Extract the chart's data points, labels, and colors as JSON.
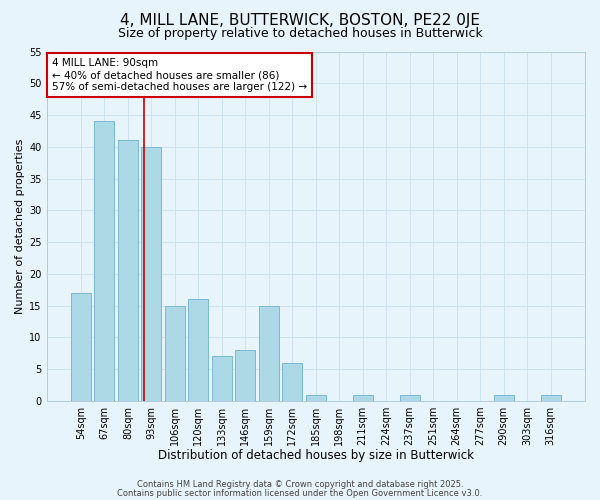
{
  "title": "4, MILL LANE, BUTTERWICK, BOSTON, PE22 0JE",
  "subtitle": "Size of property relative to detached houses in Butterwick",
  "xlabel": "Distribution of detached houses by size in Butterwick",
  "ylabel": "Number of detached properties",
  "bar_labels": [
    "54sqm",
    "67sqm",
    "80sqm",
    "93sqm",
    "106sqm",
    "120sqm",
    "133sqm",
    "146sqm",
    "159sqm",
    "172sqm",
    "185sqm",
    "198sqm",
    "211sqm",
    "224sqm",
    "237sqm",
    "251sqm",
    "264sqm",
    "277sqm",
    "290sqm",
    "303sqm",
    "316sqm"
  ],
  "bar_values": [
    17,
    44,
    41,
    40,
    15,
    16,
    7,
    8,
    15,
    6,
    1,
    0,
    1,
    0,
    1,
    0,
    0,
    0,
    1,
    0,
    1
  ],
  "bar_color": "#add8e6",
  "bar_edge_color": "#7ab8d4",
  "highlight_line_color": "#cc0000",
  "annotation_line1": "4 MILL LANE: 90sqm",
  "annotation_line2": "← 40% of detached houses are smaller (86)",
  "annotation_line3": "57% of semi-detached houses are larger (122) →",
  "annotation_box_color": "#ffffff",
  "annotation_box_edge": "#cc0000",
  "ylim": [
    0,
    55
  ],
  "yticks": [
    0,
    5,
    10,
    15,
    20,
    25,
    30,
    35,
    40,
    45,
    50,
    55
  ],
  "grid_color": "#cde4f0",
  "bg_color": "#e8f4fb",
  "footer_line1": "Contains HM Land Registry data © Crown copyright and database right 2025.",
  "footer_line2": "Contains public sector information licensed under the Open Government Licence v3.0.",
  "title_fontsize": 11,
  "subtitle_fontsize": 9,
  "xlabel_fontsize": 8.5,
  "ylabel_fontsize": 8,
  "tick_fontsize": 7,
  "annotation_fontsize": 7.5,
  "footer_fontsize": 6
}
